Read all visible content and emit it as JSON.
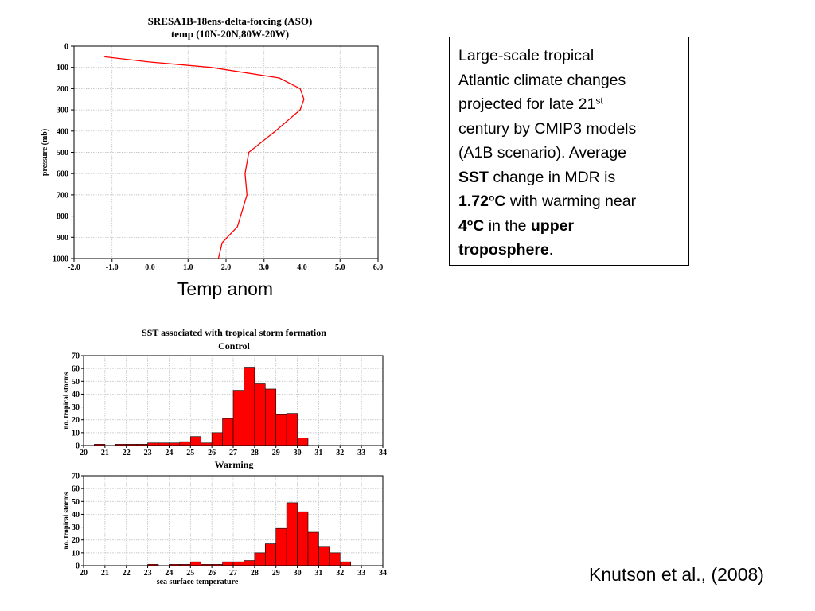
{
  "textbox": {
    "line1": "Large-scale tropical",
    "line2": "Atlantic climate changes",
    "line3_pre": "projected for late 21",
    "line3_sup": "st",
    "line4": "century by CMIP3 models",
    "line5": "(A1B scenario).  Average",
    "line6_bold": "SST",
    "line6_rest": " change in MDR is",
    "line7_bold_num": "1.72",
    "line7_bold_sup": "o",
    "line7_bold_unit": "C",
    "line7_rest": " with warming near",
    "line8_bold_num": "4",
    "line8_bold_sup": "o",
    "line8_bold_unit": "C",
    "line8_mid": " in the ",
    "line8_bold_end": "upper",
    "line9_bold": "troposphere",
    "line9_end": "."
  },
  "caption": "Temp anom",
  "citation": "Knutson et al., (2008)",
  "chart_data": [
    {
      "type": "line",
      "title": "SRESA1B-18ens-delta-forcing  (ASO)",
      "subtitle": "temp  (10N-20N,80W-20W)",
      "xlabel": "",
      "ylabel": "pressure (mb)",
      "xlim": [
        -2.0,
        6.0
      ],
      "ylim": [
        0,
        1000
      ],
      "y_inverted": true,
      "x_ticks": [
        "-2.0",
        "-1.0",
        "0.0",
        "1.0",
        "2.0",
        "3.0",
        "4.0",
        "5.0",
        "6.0"
      ],
      "y_ticks": [
        "0",
        "100",
        "200",
        "300",
        "400",
        "500",
        "600",
        "700",
        "800",
        "900",
        "1000"
      ],
      "grid": true,
      "zero_line": true,
      "line_color": "#ff0000",
      "series": [
        {
          "x": [
            -1.2,
            0.0,
            1.6,
            3.4,
            3.95,
            4.05,
            3.95,
            3.3,
            2.6,
            2.5,
            2.55,
            2.3,
            1.9,
            1.8
          ],
          "y": [
            50,
            75,
            100,
            150,
            200,
            250,
            300,
            400,
            500,
            600,
            700,
            850,
            925,
            1000
          ]
        }
      ]
    },
    {
      "type": "bar",
      "title": "SST associated with tropical storm formation",
      "subtitle": "Control",
      "xlabel": "",
      "ylabel": "no. tropical storms",
      "xlim": [
        20,
        34
      ],
      "ylim": [
        0,
        70
      ],
      "x_ticks": [
        "20",
        "21",
        "22",
        "23",
        "24",
        "25",
        "26",
        "27",
        "28",
        "29",
        "30",
        "31",
        "32",
        "33",
        "34"
      ],
      "y_ticks": [
        "0",
        "10",
        "20",
        "30",
        "40",
        "50",
        "60",
        "70"
      ],
      "grid": true,
      "bar_color": "#ff0000",
      "bin_width": 0.5,
      "bins": [
        20.5,
        21.0,
        21.5,
        22.0,
        22.5,
        23.0,
        23.5,
        24.0,
        24.5,
        25.0,
        25.5,
        26.0,
        26.5,
        27.0,
        27.5,
        28.0,
        28.5,
        29.0,
        29.5,
        30.0
      ],
      "values": [
        1,
        0,
        1,
        1,
        1,
        2,
        2,
        2,
        3,
        7,
        2,
        10,
        21,
        43,
        61,
        48,
        44,
        24,
        25,
        6
      ]
    },
    {
      "type": "bar",
      "title": "Warming",
      "xlabel": "sea surface temperature",
      "ylabel": "no. tropical storms",
      "xlim": [
        20,
        34
      ],
      "ylim": [
        0,
        70
      ],
      "x_ticks": [
        "20",
        "21",
        "22",
        "23",
        "24",
        "25",
        "26",
        "27",
        "28",
        "29",
        "30",
        "31",
        "32",
        "33",
        "34"
      ],
      "y_ticks": [
        "0",
        "10",
        "20",
        "30",
        "40",
        "50",
        "60",
        "70"
      ],
      "grid": true,
      "bar_color": "#ff0000",
      "bin_width": 0.5,
      "bins": [
        23.0,
        24.0,
        24.5,
        25.0,
        25.5,
        26.0,
        26.5,
        27.0,
        27.5,
        28.0,
        28.5,
        29.0,
        29.5,
        30.0,
        30.5,
        31.0,
        31.5,
        32.0
      ],
      "values": [
        1,
        1,
        1,
        3,
        1,
        1,
        3,
        3,
        4,
        10,
        17,
        29,
        49,
        42,
        26,
        15,
        10,
        3
      ]
    }
  ]
}
